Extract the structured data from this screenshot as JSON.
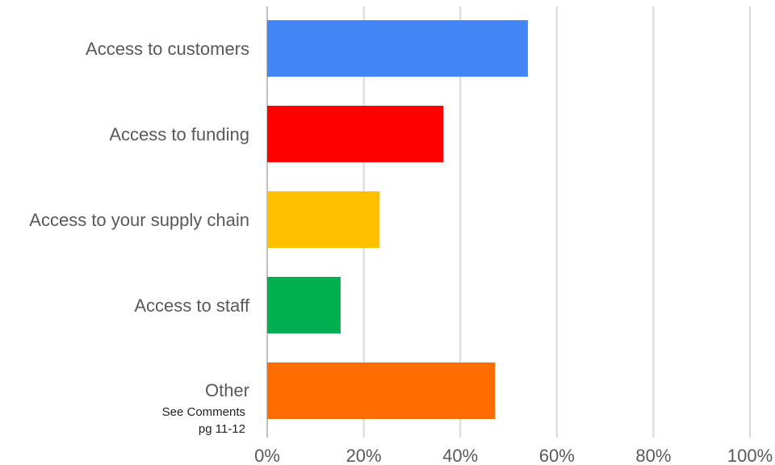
{
  "chart_data": {
    "type": "bar",
    "orientation": "horizontal",
    "categories": [
      "Access to customers",
      "Access to funding",
      "Access to your supply chain",
      "Access to staff",
      "Other"
    ],
    "values": [
      54,
      36.5,
      23.3,
      15.2,
      47.2
    ],
    "colors": [
      "#4285F4",
      "#FF0000",
      "#FFC000",
      "#00B050",
      "#FF6D00"
    ],
    "category_notes": {
      "Other": [
        "See Comments",
        "pg 11-12"
      ]
    },
    "xlim": [
      0,
      100
    ],
    "x_ticks": [
      0,
      20,
      40,
      60,
      80,
      100
    ],
    "x_tick_labels": [
      "0%",
      "20%",
      "40%",
      "60%",
      "80%",
      "100%"
    ],
    "grid": "vertical",
    "title": "",
    "xlabel": "",
    "ylabel": ""
  }
}
